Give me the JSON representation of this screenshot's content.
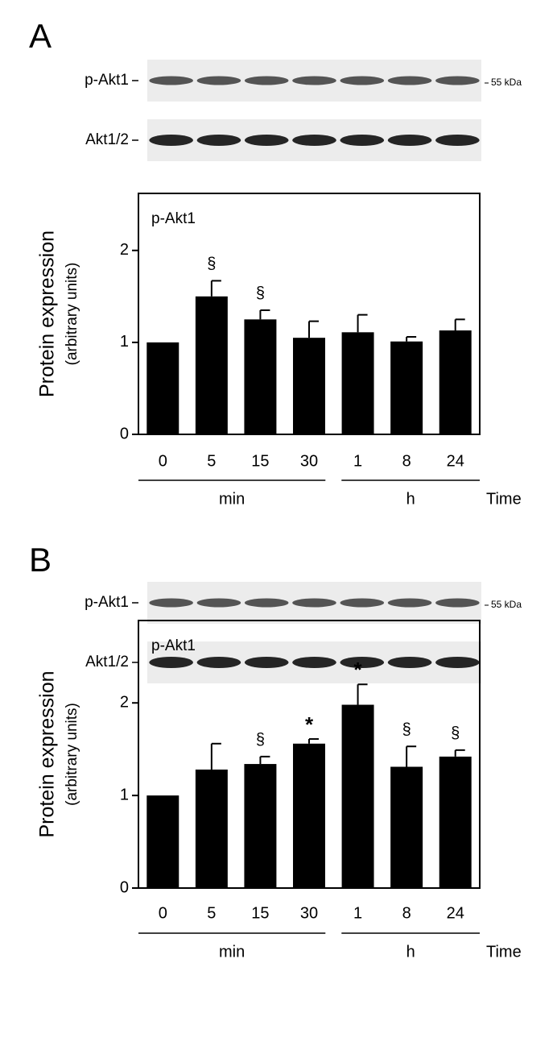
{
  "chart_data": [
    {
      "type": "bar",
      "panel": "A",
      "blots": [
        {
          "label": "p-Akt1"
        },
        {
          "label": "Akt1/2"
        }
      ],
      "size_marker": "55 kDa",
      "annotation": "p-Akt1",
      "ylabel": "Protein expression",
      "ylabel_sub": "(arbitrary units)",
      "categories": [
        "0",
        "5",
        "15",
        "30",
        "1",
        "8",
        "24"
      ],
      "values": [
        1.0,
        1.5,
        1.25,
        1.05,
        1.11,
        1.01,
        1.13
      ],
      "errors": [
        0,
        0.17,
        0.1,
        0.18,
        0.19,
        0.05,
        0.12
      ],
      "significance": [
        null,
        "§",
        "§",
        null,
        null,
        null,
        null
      ],
      "groups": [
        "min",
        "h"
      ],
      "xlabel": "Time",
      "color": "#000000",
      "ylim": [
        0,
        2.62
      ],
      "yticks": [
        0,
        1,
        2
      ]
    },
    {
      "type": "bar",
      "panel": "B",
      "blots": [
        {
          "label": "p-Akt1"
        },
        {
          "label": "Akt1/2"
        }
      ],
      "size_marker": "55 kDa",
      "annotation": "p-Akt1",
      "ylabel": "Protein expression",
      "ylabel_sub": "(arbitrary units)",
      "categories": [
        "0",
        "5",
        "15",
        "30",
        "1",
        "8",
        "24"
      ],
      "values": [
        1.0,
        1.28,
        1.34,
        1.56,
        1.98,
        1.31,
        1.42
      ],
      "errors": [
        0,
        0.28,
        0.08,
        0.05,
        0.22,
        0.22,
        0.07
      ],
      "significance": [
        null,
        null,
        "§",
        "*",
        "*",
        "§",
        "§"
      ],
      "groups": [
        "min",
        "h"
      ],
      "xlabel": "Time",
      "color": "#000000",
      "ylim": [
        0,
        2.89
      ],
      "yticks": [
        0,
        1,
        2
      ]
    }
  ]
}
